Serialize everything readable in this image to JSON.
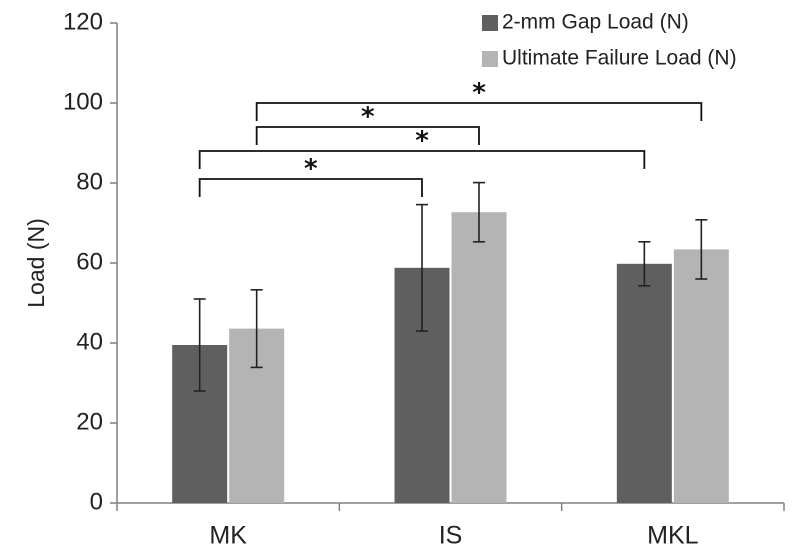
{
  "chart_data": {
    "type": "bar",
    "title": "",
    "xlabel": "",
    "ylabel": "Load (N)",
    "ylim": [
      0,
      120
    ],
    "yticks": [
      0,
      20,
      40,
      60,
      80,
      100,
      120
    ],
    "ytick_labels": [
      "0",
      "20",
      "40",
      "60",
      "80",
      "100",
      "120"
    ],
    "categories": [
      "MK",
      "IS",
      "MKL"
    ],
    "grid": false,
    "legend_position": "top-right",
    "series": [
      {
        "name": "2-mm Gap Load (N)",
        "color": "#5f5f5f",
        "values": [
          39.5,
          58.8,
          59.8
        ],
        "error": [
          11.5,
          15.8,
          5.5
        ]
      },
      {
        "name": "Ultimate Failure Load (N)",
        "color": "#b4b4b4",
        "values": [
          43.6,
          72.7,
          63.4
        ],
        "error": [
          9.7,
          7.4,
          7.4
        ]
      }
    ],
    "significance": [
      {
        "from": [
          0,
          0
        ],
        "to": [
          1,
          0
        ],
        "bracket_y": 81,
        "label": "*"
      },
      {
        "from": [
          0,
          0
        ],
        "to": [
          2,
          0
        ],
        "bracket_y": 88,
        "label": "*"
      },
      {
        "from": [
          0,
          1
        ],
        "to": [
          1,
          1
        ],
        "bracket_y": 94,
        "label": "*"
      },
      {
        "from": [
          0,
          1
        ],
        "to": [
          2,
          1
        ],
        "bracket_y": 100,
        "label": "*"
      }
    ],
    "colors": {
      "axis": "#808080",
      "bracket": "#111111"
    }
  }
}
